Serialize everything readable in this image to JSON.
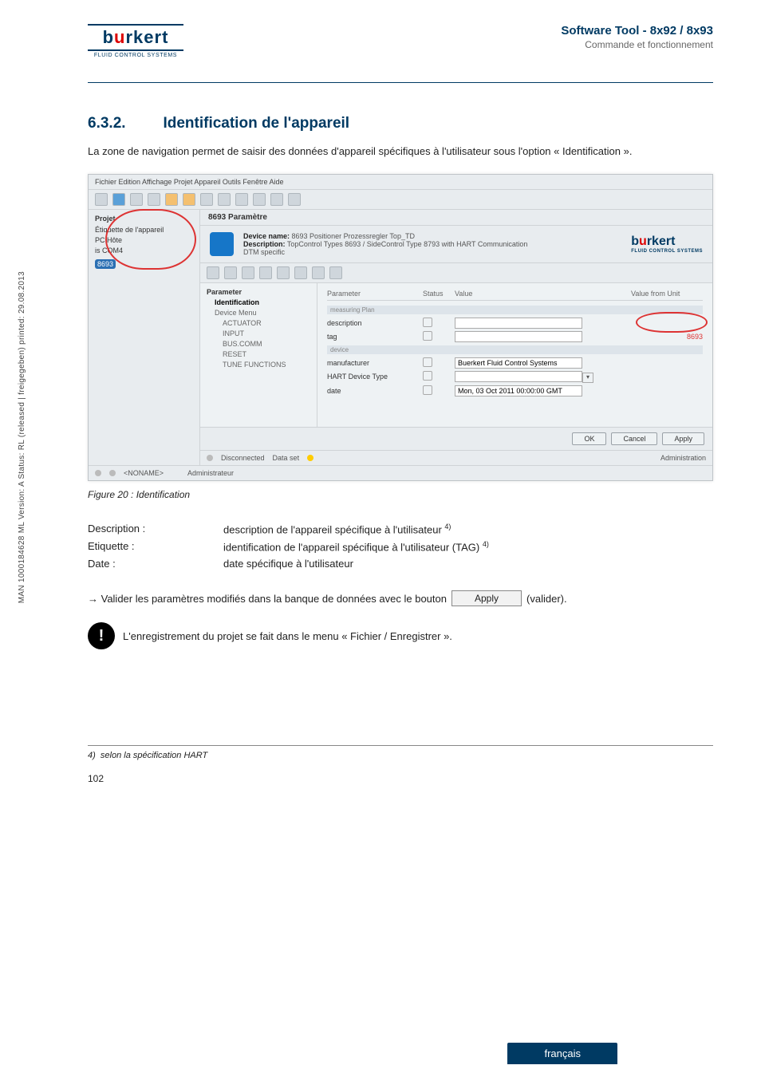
{
  "sidebar_text": "MAN 1000184628 ML Version: A Status: RL (released | freigegeben) printed: 29.08.2013",
  "logo": {
    "brand_pre": "b",
    "brand_u": "u",
    "brand_post": "rkert",
    "sub": "FLUID CONTROL SYSTEMS"
  },
  "header": {
    "title": "Software Tool - 8x92 / 8x93",
    "subtitle": "Commande et fonctionnement"
  },
  "section": {
    "num": "6.3.2.",
    "title": "Identification de l'appareil"
  },
  "intro": "La zone de navigation permet de saisir des données d'appareil spécifiques à l'utilisateur sous l'option « Identification ».",
  "shot": {
    "menubar": "Fichier  Edition  Affichage  Projet  Appareil  Outils  Fenêtre  Aide",
    "nav_header": "Projet",
    "nav_items": [
      {
        "label": "Étiquette de l'appareil",
        "sel": false
      },
      {
        "label": "PC Hôte",
        "sel": false
      },
      {
        "label": "is COM4",
        "sel": false
      },
      {
        "label": "8693",
        "sel": true
      }
    ],
    "panel_title": "8693 Paramètre",
    "panel_rows": [
      {
        "k": "Device name:",
        "v": "8693 Positioner Prozessregler Top_TD"
      },
      {
        "k": "Description:",
        "v": "TopControl Types 8693 / SideControl Type 8793 with HART Communication"
      },
      {
        "k": "",
        "v": "DTM specific"
      }
    ],
    "tree": [
      {
        "label": "Parameter",
        "lvl": 0,
        "sel": true
      },
      {
        "label": "Identification",
        "lvl": 1,
        "sel": true
      },
      {
        "label": "Device Menu",
        "lvl": 1,
        "sel": false
      },
      {
        "label": "ACTUATOR",
        "lvl": 2,
        "sel": false
      },
      {
        "label": "INPUT",
        "lvl": 2,
        "sel": false
      },
      {
        "label": "BUS.COMM",
        "lvl": 2,
        "sel": false
      },
      {
        "label": "RESET",
        "lvl": 2,
        "sel": false
      },
      {
        "label": "TUNE FUNCTIONS",
        "lvl": 2,
        "sel": false
      }
    ],
    "param_headers": [
      "Parameter",
      "Status",
      "Value",
      "Value from  Unit"
    ],
    "group1": "measuring Plan",
    "rows1": [
      {
        "name": "description",
        "val": ""
      },
      {
        "name": "tag",
        "val": "",
        "oval": "8693"
      }
    ],
    "group2": "device",
    "rows2": [
      {
        "name": "manufacturer",
        "val": "Buerkert Fluid Control Systems"
      },
      {
        "name": "HART Device Type",
        "val": "",
        "combo": true
      },
      {
        "name": "date",
        "val": "Mon, 03 Oct 2011 00:00:00 GMT"
      }
    ],
    "buttons": [
      "OK",
      "Cancel",
      "Apply"
    ],
    "status": {
      "left": "Disconnected",
      "mid": "Data set",
      "right": "Administration",
      "tag": "<NONAME>",
      "role": "Administrateur"
    }
  },
  "figcap": "Figure 20 :    Identification",
  "defs": [
    {
      "k": "Description :",
      "v": "description de l'appareil spécifique à l'utilisateur ",
      "sup": "4)"
    },
    {
      "k": "Etiquette :",
      "v": "identification de l'appareil spécifique à l'utilisateur (TAG) ",
      "sup": "4)"
    },
    {
      "k": "Date :",
      "v": "date spécifique à l'utilisateur",
      "sup": ""
    }
  ],
  "apply": {
    "pre": "→ Valider les paramètres modifiés dans la banque de données avec le bouton",
    "btn": "Apply",
    "post": "(valider)."
  },
  "note": "L'enregistrement du projet se fait dans le menu « Fichier / Enregistrer ».",
  "footnote": {
    "num": "4)",
    "text": "selon la spécification HART"
  },
  "pagenum": "102",
  "lang": "français"
}
